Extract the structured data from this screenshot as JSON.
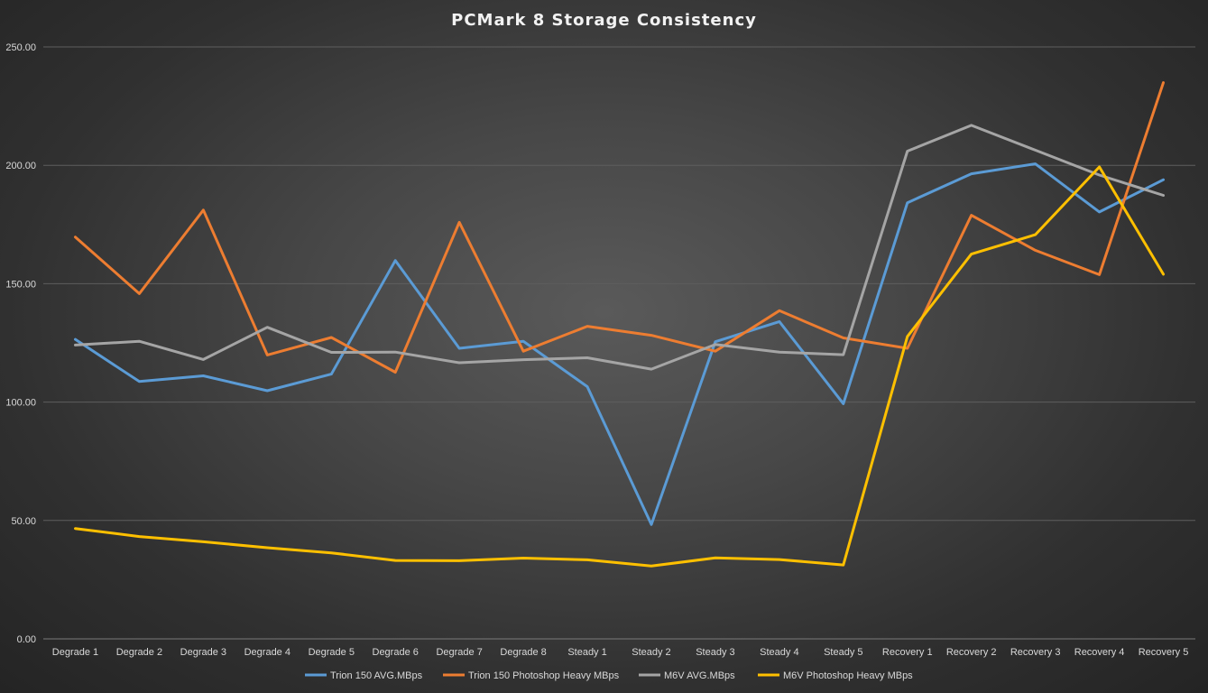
{
  "chart_data": {
    "type": "line",
    "title": "PCMark  8 Storage  Consistency",
    "xlabel": "",
    "ylabel": "",
    "ylim": [
      0,
      250
    ],
    "yticks": [
      "0.00",
      "50.00",
      "100.00",
      "150.00",
      "200.00",
      "250.00"
    ],
    "grid": true,
    "legend_position": "bottom",
    "categories": [
      "Degrade 1",
      "Degrade 2",
      "Degrade 3",
      "Degrade 4",
      "Degrade 5",
      "Degrade 6",
      "Degrade 7",
      "Degrade 8",
      "Steady 1",
      "Steady 2",
      "Steady 3",
      "Steady 4",
      "Steady 5",
      "Recovery 1",
      "Recovery 2",
      "Recovery 3",
      "Recovery 4",
      "Recovery 5"
    ],
    "series": [
      {
        "name": "Trion 150 AVG.MBps",
        "color": "#5b9bd5",
        "values": [
          126.5,
          108.7,
          111.1,
          104.8,
          111.8,
          159.8,
          122.7,
          125.7,
          106.5,
          48.3,
          125.5,
          134.0,
          99.3,
          184.2,
          196.4,
          200.6,
          180.3,
          193.9
        ]
      },
      {
        "name": "Trion 150 Photoshop Heavy MBps",
        "color": "#ed7d31",
        "values": [
          169.7,
          145.8,
          181.1,
          119.9,
          127.3,
          112.6,
          175.9,
          121.5,
          132.0,
          128.2,
          121.5,
          138.6,
          127.1,
          122.7,
          178.9,
          164.1,
          153.8,
          234.9
        ]
      },
      {
        "name": "M6V AVG.MBps",
        "color": "#a5a5a5",
        "values": [
          124.1,
          125.7,
          118.0,
          131.6,
          121.0,
          121.1,
          116.6,
          117.9,
          118.7,
          113.9,
          124.3,
          121.1,
          120.0,
          206.0,
          216.9,
          206.4,
          195.9,
          187.3
        ]
      },
      {
        "name": "M6V Photoshop Heavy MBps",
        "color": "#ffc000",
        "values": [
          46.6,
          43.2,
          41.0,
          38.5,
          36.3,
          33.1,
          33.0,
          34.1,
          33.4,
          30.8,
          34.2,
          33.5,
          31.2,
          127.7,
          162.5,
          170.7,
          199.3,
          154.0
        ]
      }
    ]
  }
}
